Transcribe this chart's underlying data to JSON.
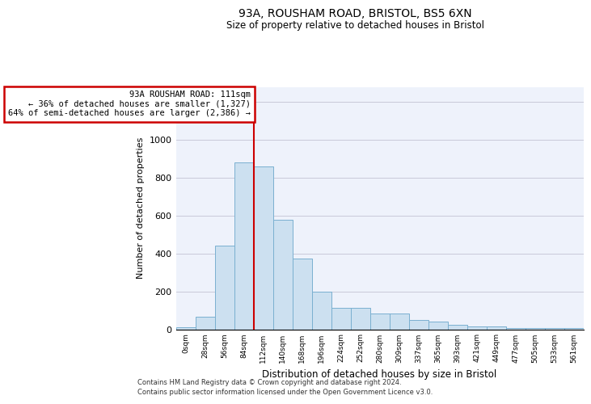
{
  "title": "93A, ROUSHAM ROAD, BRISTOL, BS5 6XN",
  "subtitle": "Size of property relative to detached houses in Bristol",
  "xlabel": "Distribution of detached houses by size in Bristol",
  "ylabel": "Number of detached properties",
  "bar_color": "#cce0f0",
  "bar_edge_color": "#7ab0d0",
  "grid_color": "#c8c8d8",
  "bg_color": "#eef2fb",
  "annotation_box_color": "#cc0000",
  "annotation_line_color": "#cc0000",
  "ylim": [
    0,
    1280
  ],
  "yticks": [
    0,
    200,
    400,
    600,
    800,
    1000,
    1200
  ],
  "categories": [
    "0sqm",
    "28sqm",
    "56sqm",
    "84sqm",
    "112sqm",
    "140sqm",
    "168sqm",
    "196sqm",
    "224sqm",
    "252sqm",
    "280sqm",
    "309sqm",
    "337sqm",
    "365sqm",
    "393sqm",
    "421sqm",
    "449sqm",
    "477sqm",
    "505sqm",
    "533sqm",
    "561sqm"
  ],
  "values": [
    12,
    65,
    440,
    880,
    860,
    580,
    375,
    200,
    115,
    115,
    85,
    85,
    50,
    40,
    22,
    15,
    15,
    5,
    5,
    5,
    5
  ],
  "property_line_x": 4,
  "annotation_line1": "93A ROUSHAM ROAD: 111sqm",
  "annotation_line2": "← 36% of detached houses are smaller (1,327)",
  "annotation_line3": "64% of semi-detached houses are larger (2,386) →",
  "footnote1": "Contains HM Land Registry data © Crown copyright and database right 2024.",
  "footnote2": "Contains public sector information licensed under the Open Government Licence v3.0."
}
